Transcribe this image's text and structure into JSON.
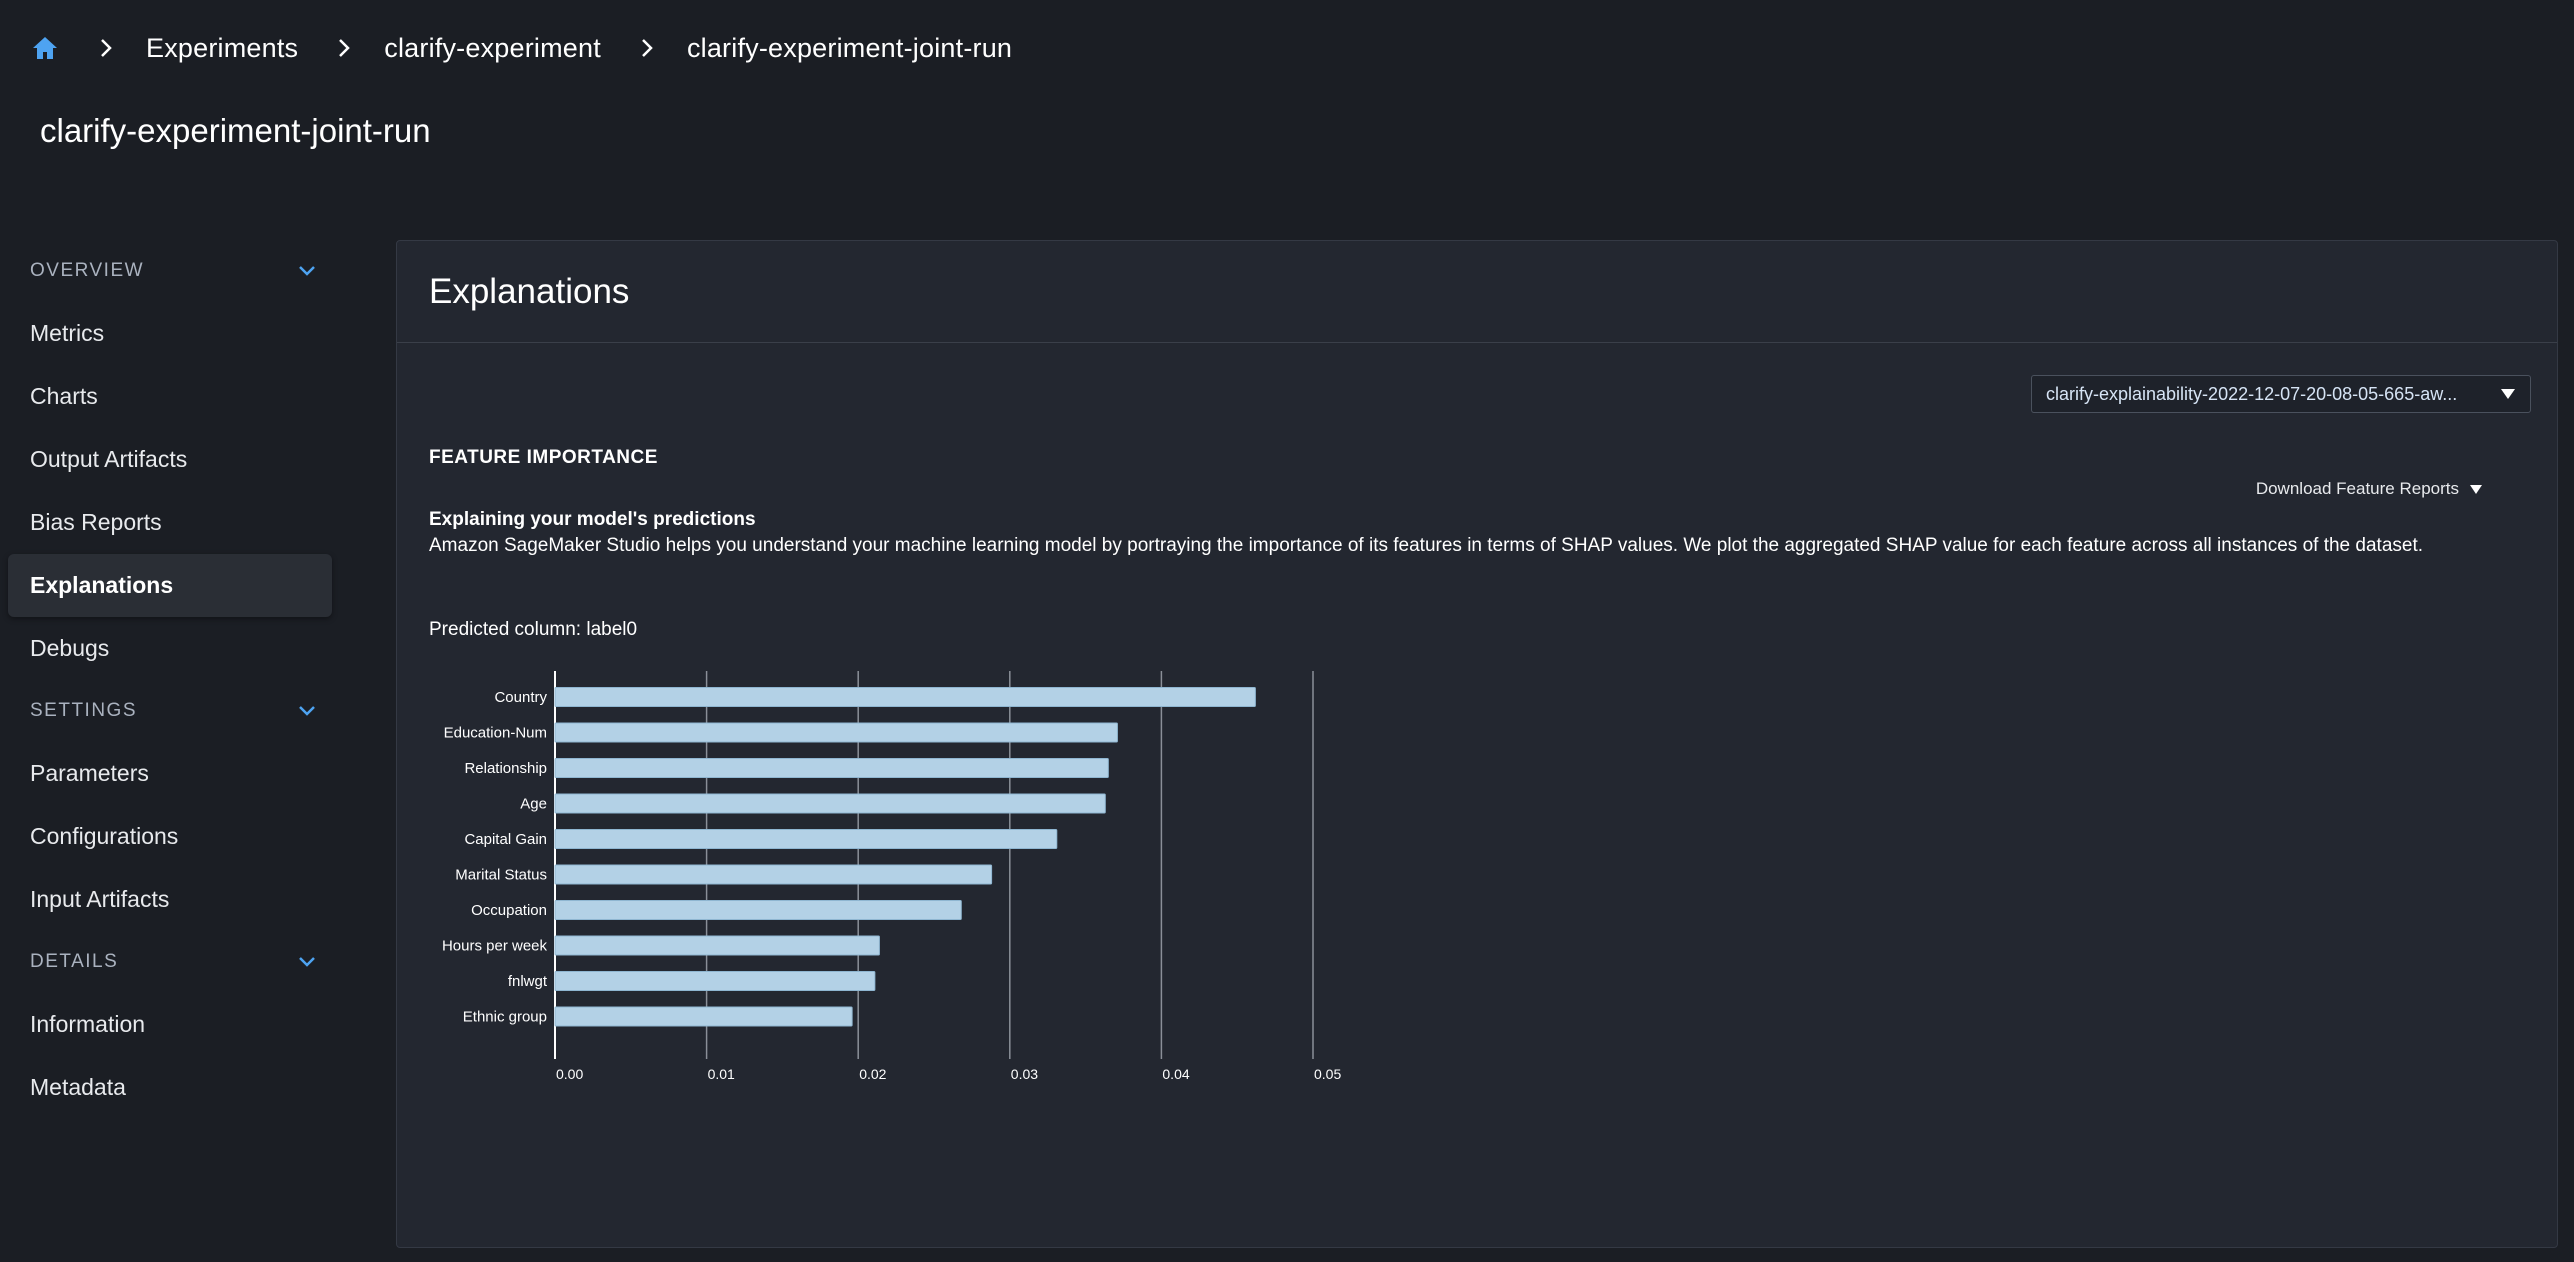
{
  "breadcrumb": {
    "home_icon": "home-icon",
    "items": [
      "Experiments",
      "clarify-experiment",
      "clarify-experiment-joint-run"
    ]
  },
  "page_title": "clarify-experiment-joint-run",
  "sidebar": {
    "overview_label": "OVERVIEW",
    "overview_items": [
      "Metrics",
      "Charts",
      "Output Artifacts",
      "Bias Reports",
      "Explanations",
      "Debugs"
    ],
    "settings_label": "SETTINGS",
    "settings_items": [
      "Parameters",
      "Configurations",
      "Input Artifacts"
    ],
    "details_label": "DETAILS",
    "details_items": [
      "Information",
      "Metadata"
    ],
    "active_item": "Explanations"
  },
  "panel": {
    "title": "Explanations",
    "report_select_value": "clarify-explainability-2022-12-07-20-08-05-665-aw...",
    "section_label": "FEATURE IMPORTANCE",
    "download_label": "Download Feature Reports",
    "explain_heading": "Explaining your model's predictions",
    "explain_desc": "Amazon SageMaker Studio helps you understand your machine learning model by portraying the importance of its features in terms of SHAP values. We plot the aggregated SHAP value for each feature across all instances of the dataset.",
    "predicted_column": "Predicted column: label0"
  },
  "colors": {
    "accent": "#4ea3f1",
    "bar_fill": "#b3d1e6",
    "background": "#1b1e24",
    "panel": "#232730"
  },
  "chart_data": {
    "type": "bar",
    "orientation": "horizontal",
    "title": "",
    "xlabel": "",
    "ylabel": "",
    "categories": [
      "Country",
      "Education-Num",
      "Relationship",
      "Age",
      "Capital Gain",
      "Marital Status",
      "Occupation",
      "Hours per week",
      "fnlwgt",
      "Ethnic group"
    ],
    "values": [
      0.0462,
      0.0371,
      0.0365,
      0.0363,
      0.0331,
      0.0288,
      0.0268,
      0.0214,
      0.0211,
      0.0196
    ],
    "xlim": [
      0,
      0.05
    ],
    "xticks": [
      "0.00",
      "0.01",
      "0.02",
      "0.03",
      "0.04",
      "0.05"
    ],
    "grid": true
  }
}
